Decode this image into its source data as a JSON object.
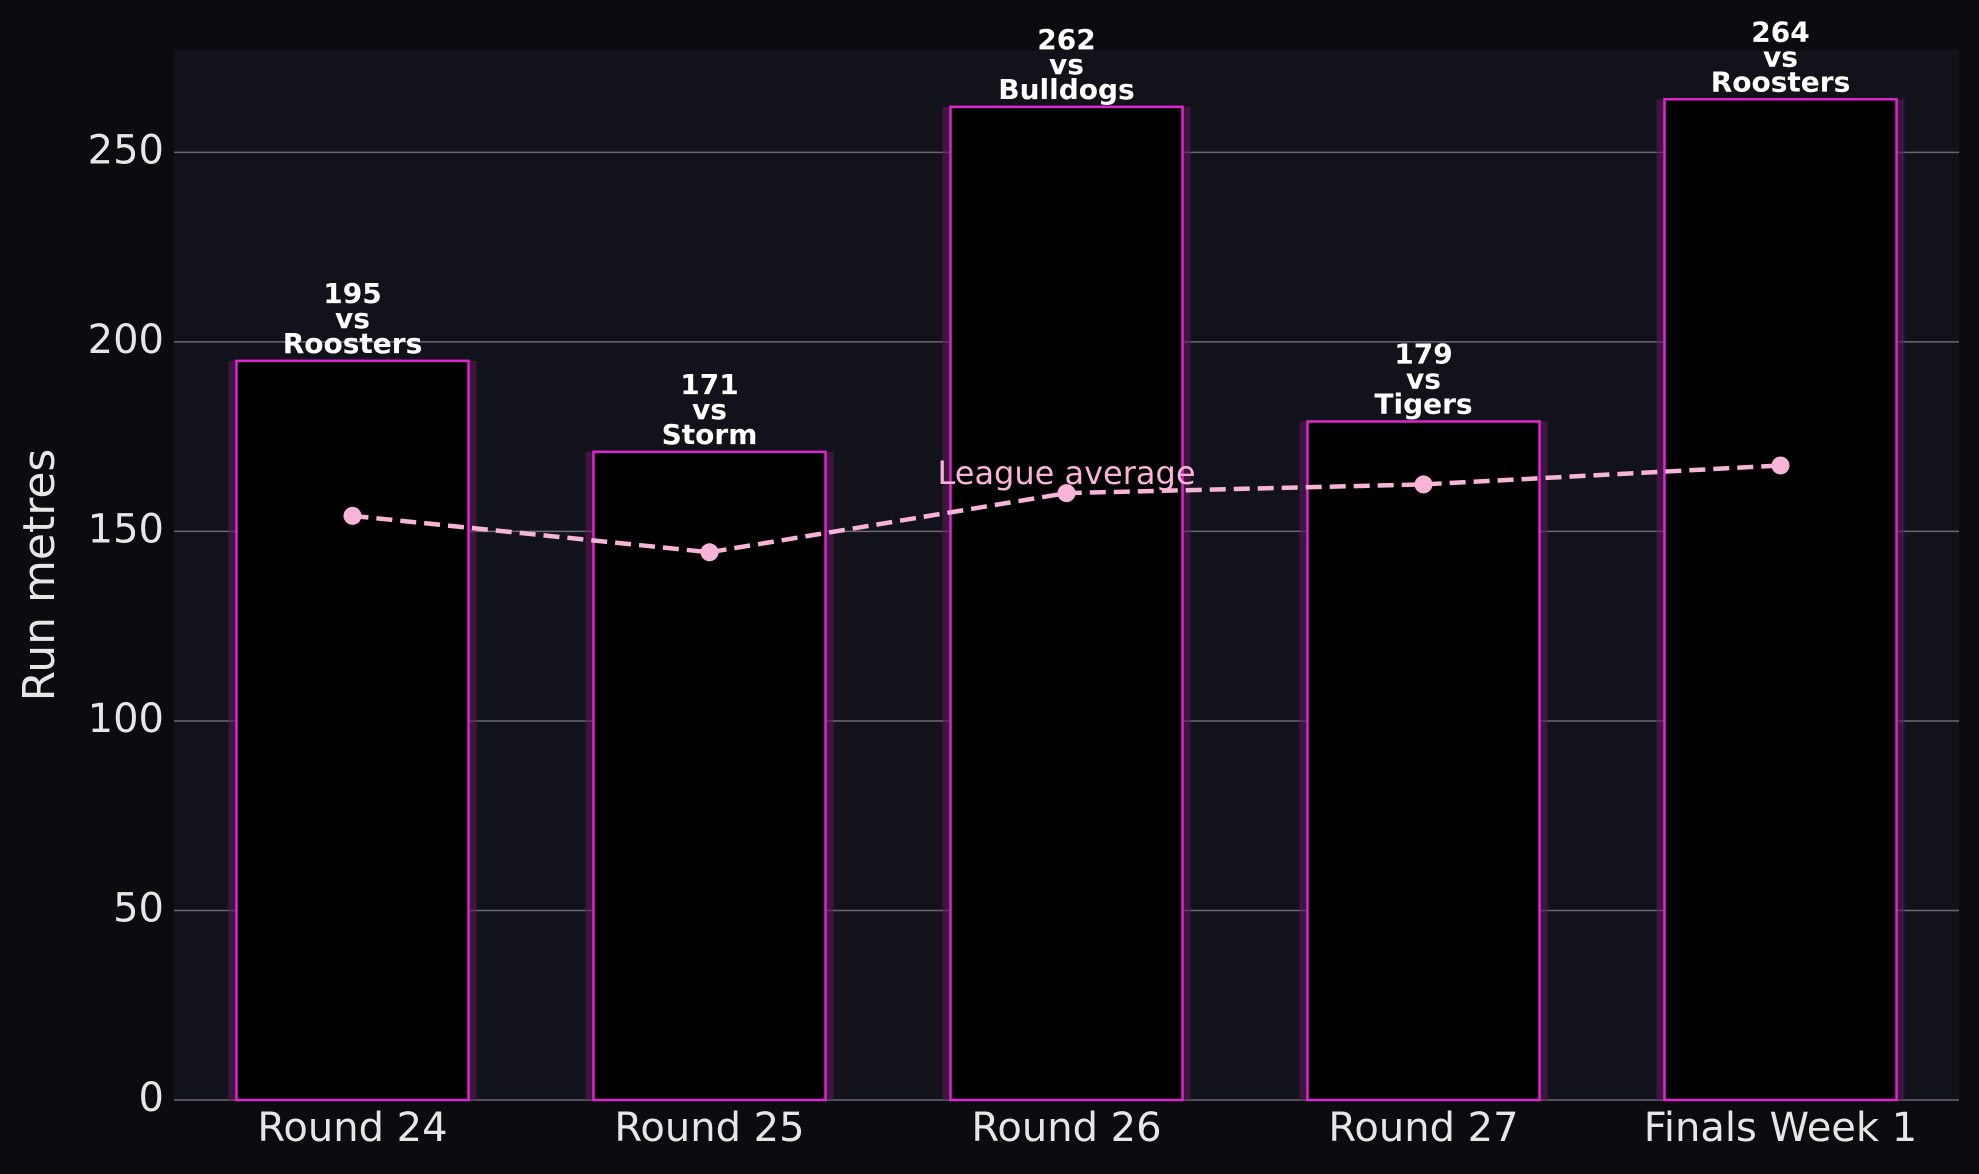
{
  "chart_data": {
    "type": "bar",
    "ylabel": "Run metres",
    "categories": [
      "Round 24",
      "Round 25",
      "Round 26",
      "Round 27",
      "Finals Week 1"
    ],
    "values": [
      195,
      171,
      262,
      179,
      264
    ],
    "opponent_prefix": "vs",
    "opponents": [
      "Roosters",
      "Storm",
      "Bulldogs",
      "Tigers",
      "Roosters"
    ],
    "color": "#000000",
    "edge_color": "#e024cf",
    "line": {
      "name": "League average",
      "color": "#f7b3d8",
      "values": [
        154.1,
        144.5,
        160.1,
        162.4,
        167.4
      ]
    },
    "ylim": [
      0,
      277
    ],
    "yticks": [
      0,
      50,
      100,
      150,
      200,
      250
    ],
    "grid": true
  }
}
